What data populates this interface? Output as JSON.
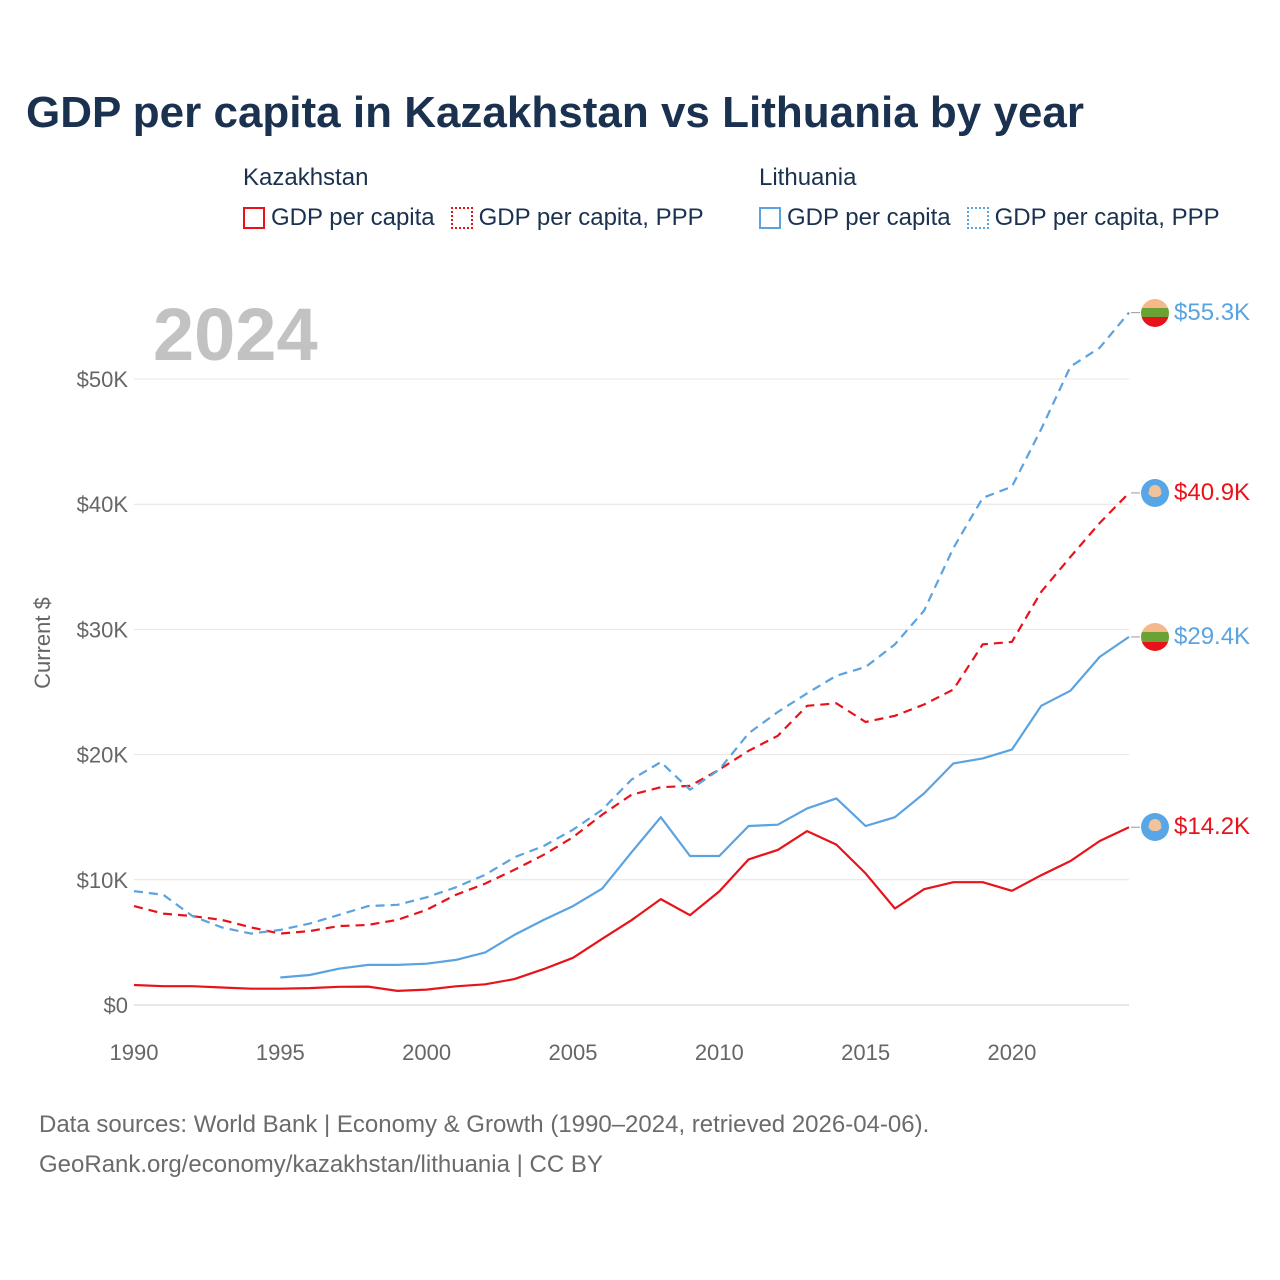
{
  "title": "GDP per capita in Kazakhstan vs Lithuania by year",
  "legend": {
    "groups": [
      {
        "country": "Kazakhstan",
        "color": "#e8131a",
        "items": [
          {
            "label": "GDP per capita",
            "style": "solid"
          },
          {
            "label": "GDP per capita, PPP",
            "style": "dotted"
          }
        ]
      },
      {
        "country": "Lithuania",
        "color": "#5ba3e0",
        "items": [
          {
            "label": "GDP per capita",
            "style": "solid"
          },
          {
            "label": "GDP per capita, PPP",
            "style": "dotted"
          }
        ]
      }
    ]
  },
  "current_year": "2024",
  "end_labels": [
    {
      "text": "$55.3K",
      "color": "#5ba3e0",
      "flag": "lithuania-flag-icon",
      "value": 55300
    },
    {
      "text": "$40.9K",
      "color": "#e8131a",
      "flag": "kazakhstan-flag-icon",
      "value": 40900
    },
    {
      "text": "$29.4K",
      "color": "#5ba3e0",
      "flag": "lithuania-flag-icon",
      "value": 29400
    },
    {
      "text": "$14.2K",
      "color": "#e8131a",
      "flag": "kazakhstan-flag-icon",
      "value": 14200
    }
  ],
  "footer": {
    "line1": "Data sources: World Bank | Economy & Growth (1990–2024, retrieved 2026-04-06).",
    "line2": "GeoRank.org/economy/kazakhstan/lithuania | CC BY"
  },
  "chart_data": {
    "type": "line",
    "title": "GDP per capita in Kazakhstan vs Lithuania by year",
    "xlabel": "",
    "ylabel": "Current $",
    "xlim": [
      1990,
      2024
    ],
    "ylim": [
      0,
      55300
    ],
    "x_ticks": [
      1990,
      1995,
      2000,
      2005,
      2010,
      2015,
      2020
    ],
    "y_ticks": [
      {
        "value": 0,
        "label": "$0"
      },
      {
        "value": 10000,
        "label": "$10K"
      },
      {
        "value": 20000,
        "label": "$20K"
      },
      {
        "value": 30000,
        "label": "$30K"
      },
      {
        "value": 40000,
        "label": "$40K"
      },
      {
        "value": 50000,
        "label": "$50K"
      }
    ],
    "grid": true,
    "series": [
      {
        "name": "Kazakhstan GDP per capita",
        "color": "#e8131a",
        "dash": "solid",
        "start": 1990,
        "values": [
          1600,
          1500,
          1500,
          1400,
          1300,
          1300,
          1350,
          1450,
          1470,
          1130,
          1230,
          1490,
          1650,
          2070,
          2870,
          3770,
          5290,
          6770,
          8460,
          7170,
          9070,
          11630,
          12390,
          13890,
          12810,
          10510,
          7710,
          9250,
          9810,
          9810,
          9120,
          10370,
          11500,
          13100,
          14200
        ]
      },
      {
        "name": "Kazakhstan GDP per capita, PPP",
        "color": "#e8131a",
        "dash": "dashed",
        "start": 1990,
        "values": [
          7900,
          7300,
          7100,
          6800,
          6200,
          5700,
          5900,
          6300,
          6400,
          6800,
          7600,
          8800,
          9700,
          10800,
          12000,
          13400,
          15200,
          16800,
          17400,
          17500,
          18800,
          20300,
          21500,
          23900,
          24100,
          22600,
          23100,
          24000,
          25200,
          28800,
          29000,
          33000,
          35800,
          38500,
          40900
        ]
      },
      {
        "name": "Lithuania GDP per capita",
        "color": "#5ba3e0",
        "dash": "solid",
        "start": 1995,
        "values": [
          2200,
          2400,
          2900,
          3200,
          3200,
          3300,
          3600,
          4200,
          5600,
          6800,
          7900,
          9300,
          12200,
          15000,
          11900,
          11900,
          14300,
          14400,
          15700,
          16500,
          14300,
          15000,
          16900,
          19300,
          19700,
          20400,
          23900,
          25100,
          27800,
          29400
        ]
      },
      {
        "name": "Lithuania GDP per capita, PPP",
        "color": "#5ba3e0",
        "dash": "dashed",
        "start": 1990,
        "values": [
          9100,
          8800,
          7100,
          6200,
          5700,
          6000,
          6500,
          7200,
          7900,
          8000,
          8600,
          9400,
          10400,
          11800,
          12700,
          14000,
          15600,
          18000,
          19400,
          17200,
          18800,
          21700,
          23400,
          24900,
          26300,
          27000,
          28800,
          31500,
          36500,
          40500,
          41400,
          46000,
          51000,
          52500,
          55300
        ]
      }
    ]
  }
}
